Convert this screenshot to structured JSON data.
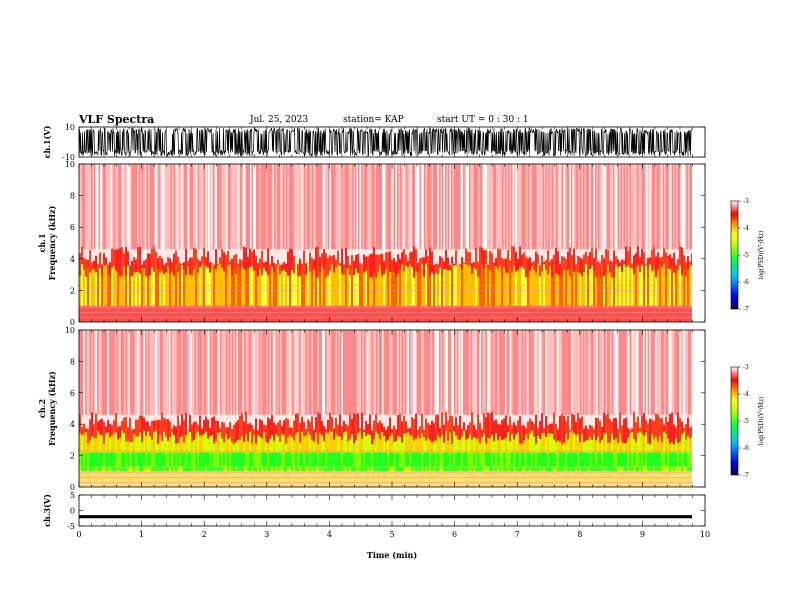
{
  "header": {
    "title": "VLF Spectra",
    "date": "Jul. 25, 2023",
    "station": "station= KAP",
    "start_ut": "start  UT =  0 : 30 : 1"
  },
  "chart_data": [
    {
      "type": "line",
      "panel": "ch1-waveform",
      "ylabel": "ch.1(V)",
      "ylim": [
        -10,
        10
      ],
      "yticks": [
        "10",
        "-10"
      ],
      "xlim": [
        0,
        10
      ],
      "note": "saturating broadband waveform between -10 and 10 V"
    },
    {
      "type": "heatmap",
      "panel": "ch1-spectrogram",
      "ylabel_top": "ch.1",
      "ylabel": "Frequency (kHz)",
      "ylim": [
        0,
        10
      ],
      "yticks": [
        "0",
        "2",
        "4",
        "6",
        "8",
        "10"
      ],
      "xlim": [
        0,
        10
      ],
      "colorbar": {
        "label": "log(PSD)(V²/Hz)",
        "ticks": [
          "-3",
          "-4",
          "-5",
          "-6",
          "-7"
        ],
        "range": [
          -7,
          -3
        ],
        "colors": [
          "#000080",
          "#0000ff",
          "#00ffff",
          "#00ff00",
          "#ffff00",
          "#ff8000",
          "#ff0000",
          "#ffffff"
        ]
      }
    },
    {
      "type": "heatmap",
      "panel": "ch2-spectrogram",
      "ylabel_top": "ch.2",
      "ylabel": "Frequency (kHz)",
      "ylim": [
        0,
        10
      ],
      "yticks": [
        "0",
        "2",
        "4",
        "6",
        "8",
        "10"
      ],
      "xlim": [
        0,
        10
      ],
      "colorbar": {
        "label": "log(PSD)(V²/Hz)",
        "ticks": [
          "-3",
          "-4",
          "-5",
          "-6",
          "-7"
        ],
        "range": [
          -7,
          -3
        ],
        "colors": [
          "#000080",
          "#0000ff",
          "#00ffff",
          "#00ff00",
          "#ffff00",
          "#ff8000",
          "#ff0000",
          "#ffffff"
        ]
      }
    },
    {
      "type": "line",
      "panel": "ch3-waveform",
      "ylabel": "ch.3(V)",
      "ylim": [
        -5,
        5
      ],
      "yticks": [
        "5",
        "0",
        "-5"
      ],
      "xlim": [
        0,
        10
      ],
      "xlabel": "Time (min)",
      "xticks": [
        "0",
        "1",
        "2",
        "3",
        "4",
        "5",
        "6",
        "7",
        "8",
        "9",
        "10"
      ],
      "note": "near-constant band around -2 V"
    }
  ]
}
